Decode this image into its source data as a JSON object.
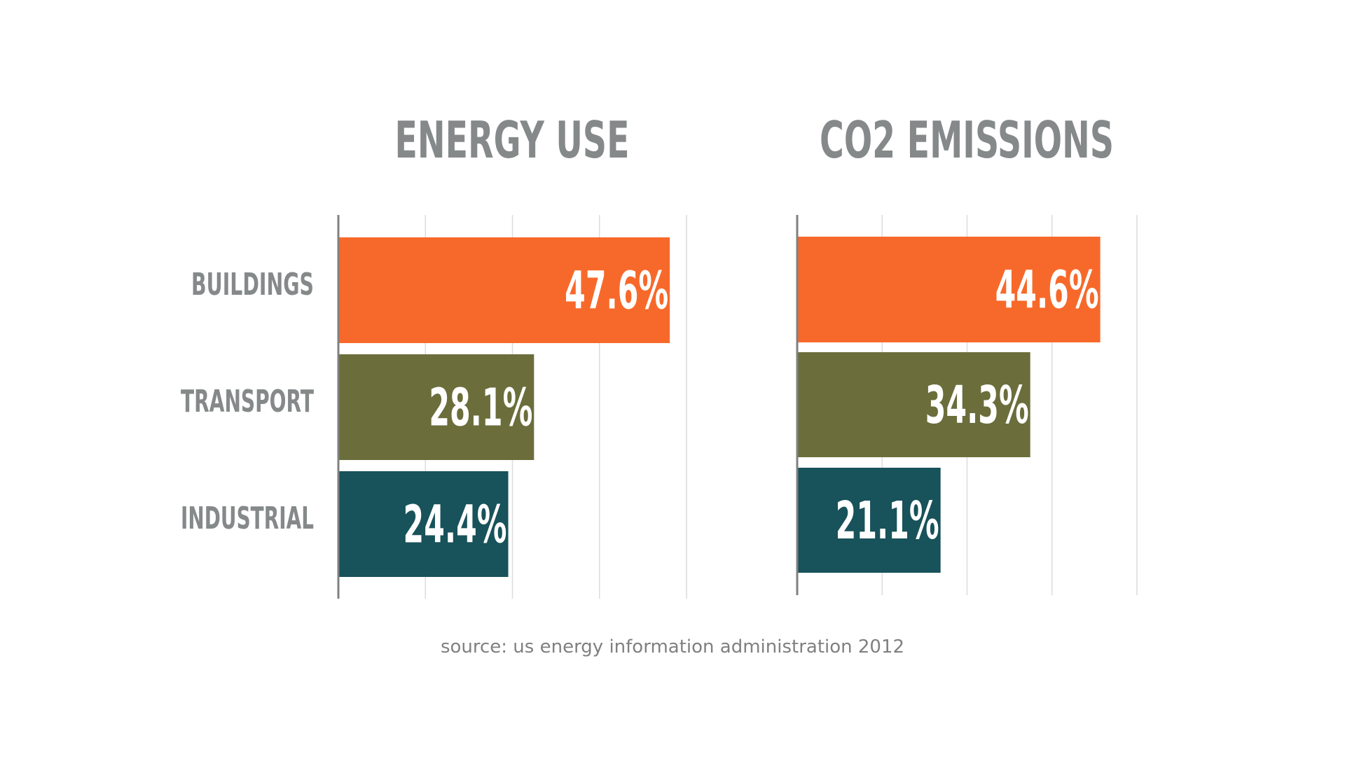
{
  "categories": [
    "BUILDINGS",
    "TRANSPORT",
    "INDUSTRIAL"
  ],
  "colors": {
    "title": "#85898a",
    "category_label": "#85898a",
    "source": "#808080",
    "value_label": "#ffffff",
    "axis": "#808080",
    "grid": "#dcdcdc",
    "bars": [
      "#f7692a",
      "#6b6e3b",
      "#18525a"
    ]
  },
  "source": "source: us energy information administration 2012",
  "chart_data": [
    {
      "type": "bar",
      "orientation": "horizontal",
      "title": "ENERGY USE",
      "categories": [
        "BUILDINGS",
        "TRANSPORT",
        "INDUSTRIAL"
      ],
      "values": [
        47.6,
        28.1,
        24.4
      ],
      "value_labels": [
        "47.6%",
        "28.1%",
        "24.4%"
      ],
      "xlim": [
        0,
        50
      ],
      "grid": true,
      "xlabel": "",
      "ylabel": ""
    },
    {
      "type": "bar",
      "orientation": "horizontal",
      "title": "CO2 EMISSIONS",
      "categories": [
        "BUILDINGS",
        "TRANSPORT",
        "INDUSTRIAL"
      ],
      "values": [
        44.6,
        34.3,
        21.1
      ],
      "value_labels": [
        "44.6%",
        "34.3%",
        "21.1%"
      ],
      "xlim": [
        0,
        50
      ],
      "grid": true,
      "xlabel": "",
      "ylabel": ""
    }
  ]
}
